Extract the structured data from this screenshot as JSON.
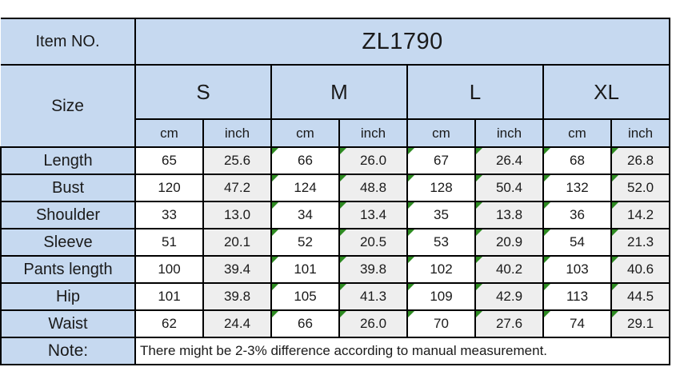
{
  "chart_data": {
    "type": "table",
    "item_no_label": "Item NO.",
    "item_no": "ZL1790",
    "size_label": "Size",
    "sizes": [
      "S",
      "M",
      "L",
      "XL"
    ],
    "units": [
      "cm",
      "inch"
    ],
    "columns": [
      "Size",
      "S cm",
      "S inch",
      "M cm",
      "M inch",
      "L cm",
      "L inch",
      "XL cm",
      "XL inch"
    ],
    "measurements": [
      {
        "label": "Length",
        "values": [
          "65",
          "25.6",
          "66",
          "26.0",
          "67",
          "26.4",
          "68",
          "26.8"
        ]
      },
      {
        "label": "Bust",
        "values": [
          "120",
          "47.2",
          "124",
          "48.8",
          "128",
          "50.4",
          "132",
          "52.0"
        ]
      },
      {
        "label": "Shoulder",
        "values": [
          "33",
          "13.0",
          "34",
          "13.4",
          "35",
          "13.8",
          "36",
          "14.2"
        ]
      },
      {
        "label": "Sleeve",
        "values": [
          "51",
          "20.1",
          "52",
          "20.5",
          "53",
          "20.9",
          "54",
          "21.3"
        ]
      },
      {
        "label": "Pants length",
        "values": [
          "100",
          "39.4",
          "101",
          "39.8",
          "102",
          "40.2",
          "103",
          "40.6"
        ]
      },
      {
        "label": "Hip",
        "values": [
          "101",
          "39.8",
          "105",
          "41.3",
          "109",
          "42.9",
          "113",
          "44.5"
        ]
      },
      {
        "label": "Waist",
        "values": [
          "62",
          "24.4",
          "66",
          "26.0",
          "70",
          "27.6",
          "74",
          "29.1"
        ]
      }
    ],
    "note_label": "Note:",
    "note": "There might be 2-3% difference according to manual measurement.",
    "layout_hints": {
      "flagged_columns_note": "green corner triangles appear on M, L and XL data cells only",
      "inch_columns_shaded": true
    }
  },
  "colors": {
    "header_fill": "#c6d9f0",
    "inch_column_fill": "#eeeeee",
    "cm_column_fill": "#ffffff",
    "grid_border": "#000000",
    "flag_triangle_green": "#2e8b22",
    "text": "#1a1a1a"
  }
}
